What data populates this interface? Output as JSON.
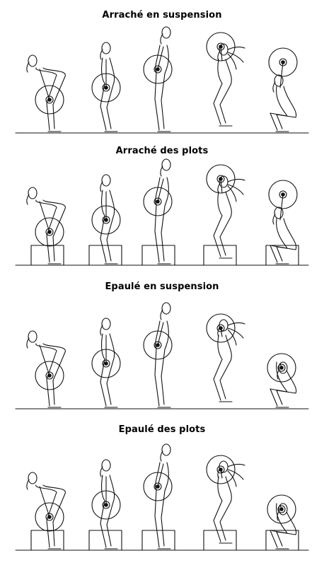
{
  "sections": [
    {
      "title": "Arraché en suspension",
      "blocks": false,
      "catch": "overhead"
    },
    {
      "title": "Arraché des plots",
      "blocks": true,
      "catch": "overhead"
    },
    {
      "title": "Epaulé en suspension",
      "blocks": false,
      "catch": "front-rack"
    },
    {
      "title": "Epaulé des plots",
      "blocks": true,
      "catch": "front-rack"
    }
  ],
  "phases": [
    "start",
    "knee",
    "extension",
    "pull-under",
    "catch"
  ],
  "icons": {
    "plate": "barbell-plate-icon",
    "athlete": "lifter-figure-icon",
    "box": "plyo-block-icon"
  }
}
